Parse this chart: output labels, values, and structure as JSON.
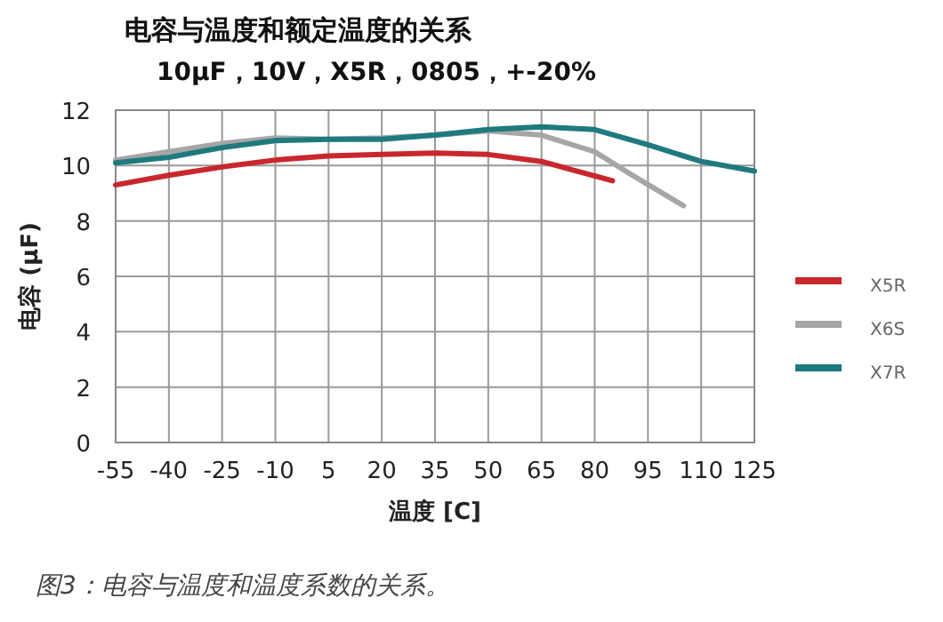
{
  "chart_data": {
    "type": "line",
    "title": "电容与温度和额定温度的关系",
    "subtitle": "10µF，10V，X5R，0805，+-20%",
    "xlabel": "温度 [C]",
    "ylabel": "电容 (µF)",
    "annotations": [
      "图3：电容与温度和温度系数的关系。"
    ],
    "xlim": [
      -55,
      125
    ],
    "ylim": [
      0,
      12
    ],
    "xticks": [
      -55,
      -40,
      -25,
      -10,
      5,
      20,
      35,
      50,
      65,
      80,
      95,
      110,
      125
    ],
    "yticks": [
      0,
      2,
      4,
      6,
      8,
      10,
      12
    ],
    "grid": true,
    "legend": "right",
    "series": [
      {
        "name": "X5R",
        "color": "#c8282d",
        "x": [
          -55,
          -40,
          -25,
          -10,
          5,
          20,
          35,
          50,
          65,
          75,
          85
        ],
        "values": [
          9.3,
          9.65,
          9.95,
          10.2,
          10.35,
          10.4,
          10.45,
          10.4,
          10.15,
          9.8,
          9.45
        ]
      },
      {
        "name": "X6S",
        "color": "#a6a6a6",
        "x": [
          -55,
          -40,
          -25,
          -10,
          5,
          20,
          35,
          50,
          65,
          80,
          90,
          105
        ],
        "values": [
          10.2,
          10.5,
          10.8,
          11.0,
          10.95,
          11.0,
          11.1,
          11.25,
          11.1,
          10.5,
          9.7,
          8.55
        ]
      },
      {
        "name": "X7R",
        "color": "#1f7a80",
        "x": [
          -55,
          -40,
          -25,
          -10,
          5,
          20,
          35,
          50,
          65,
          80,
          95,
          110,
          125
        ],
        "values": [
          10.1,
          10.3,
          10.65,
          10.9,
          10.95,
          10.95,
          11.1,
          11.3,
          11.4,
          11.3,
          10.75,
          10.15,
          9.8
        ]
      }
    ]
  }
}
